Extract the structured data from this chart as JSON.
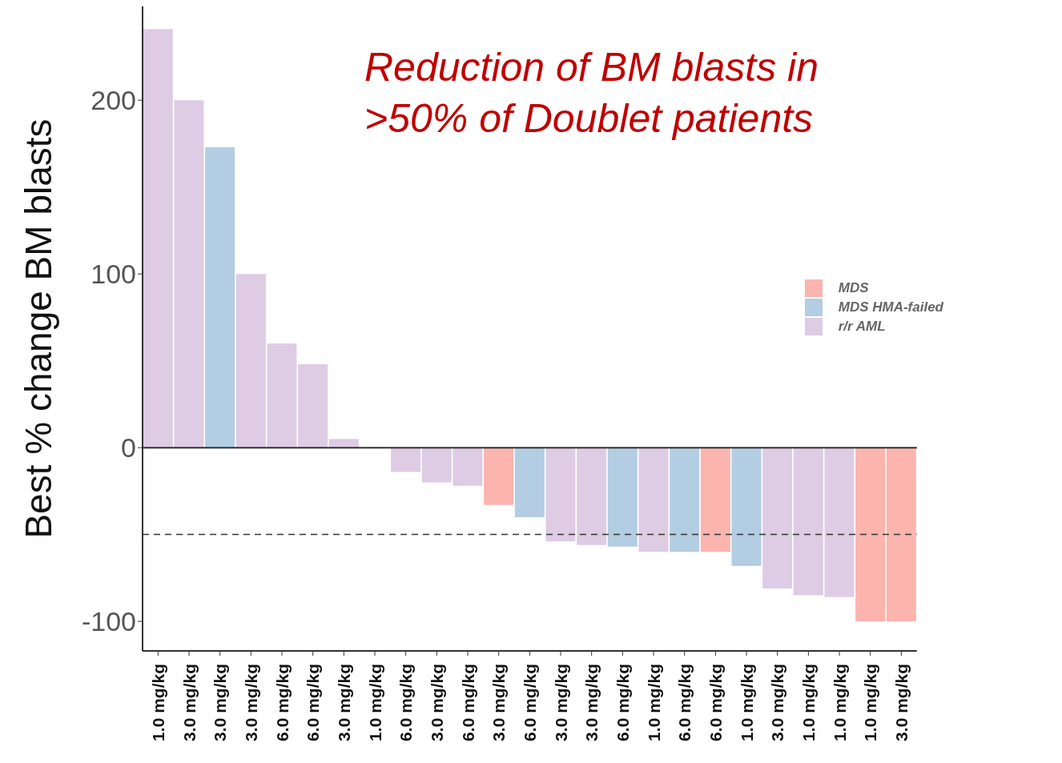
{
  "chart_data": {
    "type": "bar",
    "ylabel": "Best % change BM blasts",
    "annotations": [
      "Reduction of BM blasts in >50% of Doublet patients"
    ],
    "categories": [
      "1.0 mg/kg",
      "3.0 mg/kg",
      "3.0 mg/kg",
      "3.0 mg/kg",
      "6.0 mg/kg",
      "6.0 mg/kg",
      "3.0 mg/kg",
      "1.0 mg/kg",
      "6.0 mg/kg",
      "3.0 mg/kg",
      "6.0 mg/kg",
      "3.0 mg/kg",
      "6.0 mg/kg",
      "3.0 mg/kg",
      "3.0 mg/kg",
      "6.0 mg/kg",
      "1.0 mg/kg",
      "6.0 mg/kg",
      "6.0 mg/kg",
      "1.0 mg/kg",
      "3.0 mg/kg",
      "1.0 mg/kg",
      "1.0 mg/kg",
      "1.0 mg/kg",
      "3.0 mg/kg"
    ],
    "stacked": true,
    "series": [
      {
        "name": "MDS",
        "color": "#fbb4ae",
        "values": [
          null,
          null,
          null,
          null,
          null,
          null,
          null,
          null,
          null,
          null,
          null,
          -33,
          null,
          null,
          null,
          null,
          null,
          null,
          -60,
          null,
          null,
          null,
          null,
          -100,
          -100
        ]
      },
      {
        "name": "MDS HMA-failed",
        "color": "#b3cde3",
        "values": [
          null,
          null,
          173,
          null,
          null,
          null,
          null,
          null,
          null,
          null,
          null,
          null,
          -40,
          null,
          null,
          -57,
          null,
          -60,
          null,
          -68,
          null,
          null,
          null,
          null,
          null
        ]
      },
      {
        "name": "r/r AML",
        "color": "#decbe4",
        "values": [
          241,
          200,
          null,
          100,
          60,
          48,
          5,
          0,
          -14,
          -20,
          -22,
          null,
          null,
          -54,
          -56,
          null,
          -60,
          null,
          null,
          null,
          -81,
          -85,
          -86,
          null,
          null
        ]
      }
    ],
    "ylim": [
      -117,
      254
    ],
    "yticks": [
      -100,
      0,
      100,
      200
    ],
    "ref_lines": [
      {
        "axis": "y",
        "value": 0,
        "color": "#333333",
        "line_style": "solid"
      },
      {
        "axis": "y",
        "value": -50,
        "color": "#333333",
        "line_style": "dashed"
      }
    ],
    "grid": false,
    "legend": "right"
  }
}
